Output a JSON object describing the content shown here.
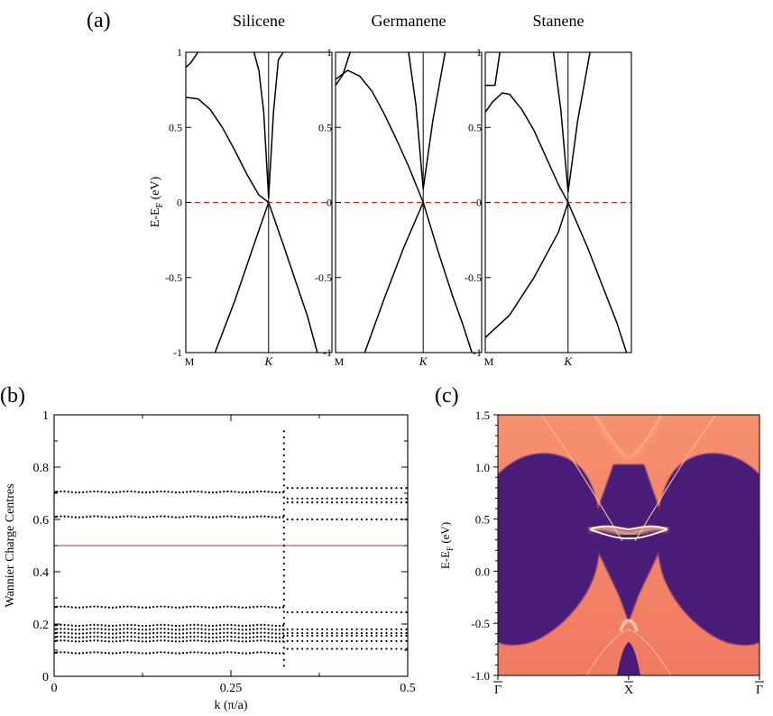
{
  "panel_labels": {
    "a": "(a)",
    "b": "(b)",
    "c": "(c)"
  },
  "chart_data": [
    {
      "id": "a",
      "type": "line",
      "ylabel_main": "E-E",
      "ylabel_sub": "F",
      "ylabel_unit": " (eV)",
      "ylim": [
        -1,
        1
      ],
      "yticks": [
        "-1",
        "-0.5",
        "0",
        "0.5",
        "1"
      ],
      "ytick_values": [
        -1,
        -0.5,
        0,
        0.5,
        1
      ],
      "xtick_labels": [
        "M",
        "K"
      ],
      "grid": false,
      "fermi_line": {
        "y": 0,
        "color": "#d62728",
        "style": "dashed"
      },
      "subplots": [
        {
          "title": "Silicene",
          "kx": 0.34,
          "gap": 0.03,
          "upper_band": [
            [
              0.28,
              1.0
            ],
            [
              0.3,
              0.88
            ],
            [
              0.32,
              0.6
            ],
            [
              0.34,
              0.03
            ],
            [
              0.36,
              0.6
            ],
            [
              0.38,
              0.95
            ],
            [
              0.4,
              1.0
            ]
          ],
          "valence_band": [
            [
              0.0,
              0.7
            ],
            [
              0.05,
              0.69
            ],
            [
              0.1,
              0.62
            ],
            [
              0.15,
              0.5
            ],
            [
              0.2,
              0.35
            ],
            [
              0.25,
              0.19
            ],
            [
              0.3,
              0.05
            ],
            [
              0.34,
              0.0
            ],
            [
              0.4,
              -0.28
            ],
            [
              0.45,
              -0.52
            ],
            [
              0.5,
              -0.76
            ],
            [
              0.54,
              -1.0
            ]
          ],
          "lower_left": [
            [
              0.12,
              -1.0
            ],
            [
              0.2,
              -0.66
            ],
            [
              0.28,
              -0.28
            ],
            [
              0.34,
              0.0
            ]
          ],
          "top_edge": [
            [
              0.0,
              0.9
            ],
            [
              0.02,
              0.93
            ],
            [
              0.05,
              1.0
            ]
          ]
        },
        {
          "title": "Germanene",
          "kx": 0.36,
          "gap": 0.09,
          "upper_band": [
            [
              0.3,
              1.0
            ],
            [
              0.33,
              0.65
            ],
            [
              0.36,
              0.09
            ],
            [
              0.4,
              0.55
            ],
            [
              0.45,
              1.0
            ]
          ],
          "valence_band": [
            [
              0.0,
              0.82
            ],
            [
              0.05,
              0.88
            ],
            [
              0.1,
              0.84
            ],
            [
              0.15,
              0.74
            ],
            [
              0.2,
              0.59
            ],
            [
              0.25,
              0.42
            ],
            [
              0.3,
              0.24
            ],
            [
              0.36,
              0.0
            ],
            [
              0.42,
              -0.32
            ],
            [
              0.48,
              -0.62
            ],
            [
              0.52,
              -0.8
            ],
            [
              0.56,
              -1.0
            ]
          ],
          "lower_left": [
            [
              0.12,
              -1.0
            ],
            [
              0.2,
              -0.64
            ],
            [
              0.28,
              -0.3
            ],
            [
              0.36,
              0.0
            ]
          ],
          "top_edge": [
            [
              0.0,
              0.78
            ],
            [
              0.03,
              0.85
            ],
            [
              0.06,
              1.0
            ]
          ]
        },
        {
          "title": "Stanene",
          "kx": 0.34,
          "gap": 0.07,
          "upper_band": [
            [
              0.28,
              1.0
            ],
            [
              0.31,
              0.62
            ],
            [
              0.34,
              0.07
            ],
            [
              0.38,
              0.55
            ],
            [
              0.43,
              1.0
            ]
          ],
          "valence_band": [
            [
              0.0,
              0.6
            ],
            [
              0.03,
              0.67
            ],
            [
              0.07,
              0.73
            ],
            [
              0.1,
              0.72
            ],
            [
              0.15,
              0.62
            ],
            [
              0.2,
              0.48
            ],
            [
              0.25,
              0.3
            ],
            [
              0.3,
              0.12
            ],
            [
              0.34,
              0.0
            ],
            [
              0.42,
              -0.3
            ],
            [
              0.48,
              -0.55
            ],
            [
              0.54,
              -0.8
            ],
            [
              0.58,
              -1.0
            ]
          ],
          "lower_left": [
            [
              0.0,
              -0.9
            ],
            [
              0.1,
              -0.75
            ],
            [
              0.2,
              -0.5
            ],
            [
              0.3,
              -0.2
            ],
            [
              0.34,
              0.0
            ]
          ],
          "top_edge": [
            [
              0.0,
              0.78
            ],
            [
              0.04,
              0.78
            ],
            [
              0.06,
              1.0
            ]
          ]
        }
      ]
    },
    {
      "id": "b",
      "type": "scatter",
      "xlabel": "k (π/a)",
      "ylabel": "Wannier Charge Centres",
      "xlim": [
        0,
        0.5
      ],
      "ylim": [
        0,
        1
      ],
      "xticks": [
        "0",
        "0.25",
        "0.5"
      ],
      "xtick_values": [
        0,
        0.25,
        0.5
      ],
      "yticks": [
        "0",
        "0.2",
        "0.4",
        "0.6",
        "0.8",
        "1"
      ],
      "ytick_values": [
        0,
        0.2,
        0.4,
        0.6,
        0.8,
        1
      ],
      "reference_line": {
        "y": 0.5,
        "color": "#d62728"
      },
      "transition_k": 0.325,
      "bands_left": [
        0.705,
        0.61,
        0.265,
        0.195,
        0.18,
        0.165,
        0.15,
        0.135,
        0.09
      ],
      "bands_right": [
        0.72,
        0.68,
        0.665,
        0.6,
        0.245,
        0.18,
        0.165,
        0.155,
        0.135,
        0.105
      ],
      "grid": false
    },
    {
      "id": "c",
      "type": "heatmap",
      "ylabel_main": "E-E",
      "ylabel_sub": "F",
      "ylabel_unit": " (eV)",
      "ylim": [
        -1.0,
        1.5
      ],
      "yticks": [
        "-1.0",
        "-0.5",
        "0.0",
        "0.5",
        "1.0",
        "1.5"
      ],
      "ytick_values": [
        -1.0,
        -0.5,
        0.0,
        0.5,
        1.0,
        1.5
      ],
      "xtick_labels": [
        "Γ",
        "X",
        "Γ"
      ],
      "colors": {
        "bulk": "#f28066",
        "gap": "#4a1b78",
        "edge_state": "#fff4c8",
        "bright": "#ffb085"
      },
      "edge_state_energy": 0.42,
      "lower_crossing_energy": -0.55
    }
  ]
}
